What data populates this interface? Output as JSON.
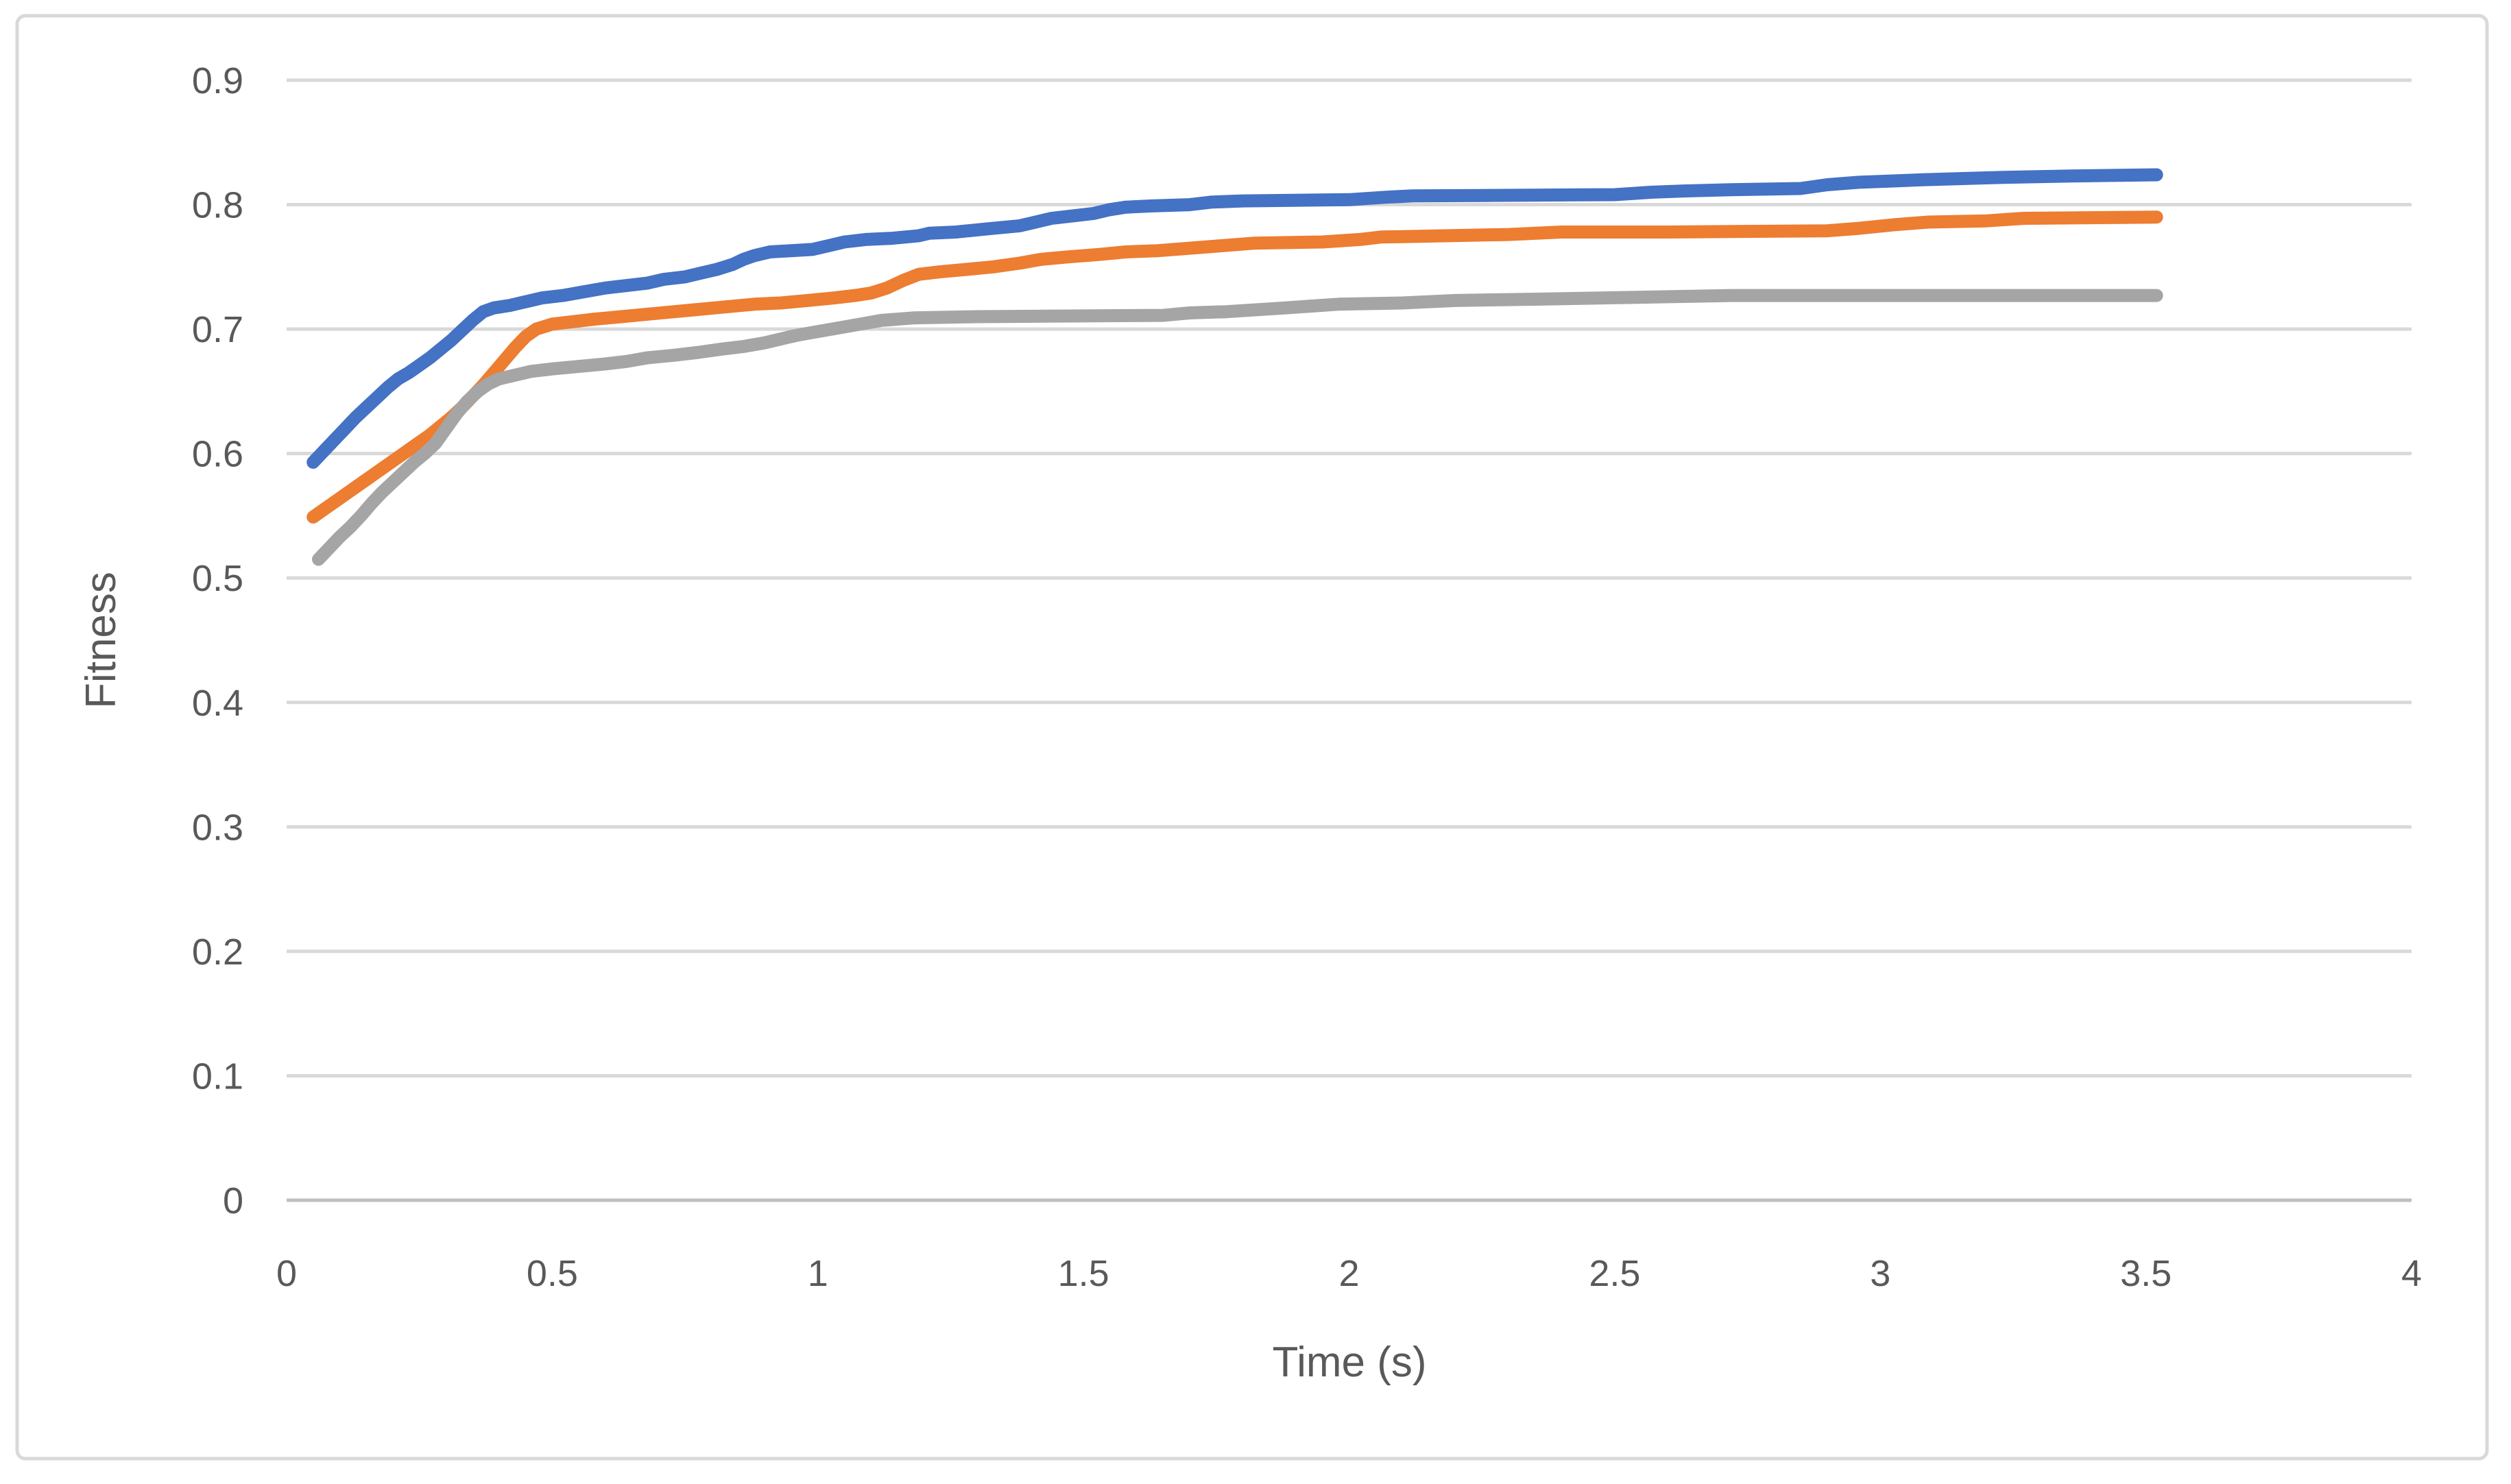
{
  "window": {
    "background": "#ffffff",
    "frame_border_color": "#d9d9d9"
  },
  "chart_data": {
    "type": "line",
    "title": "",
    "xlabel": "Time (s)",
    "ylabel": "Fitness",
    "xlim": [
      0,
      4
    ],
    "ylim": [
      0,
      0.9
    ],
    "x_ticks": [
      0,
      0.5,
      1,
      1.5,
      2,
      2.5,
      3,
      3.5,
      4
    ],
    "x_tick_labels": [
      "0",
      "0.5",
      "1",
      "1.5",
      "2",
      "2.5",
      "3",
      "3.5",
      "4"
    ],
    "y_ticks": [
      0,
      0.1,
      0.2,
      0.3,
      0.4,
      0.5,
      0.6,
      0.7,
      0.8,
      0.9
    ],
    "y_tick_labels": [
      "0",
      "0.1",
      "0.2",
      "0.3",
      "0.4",
      "0.5",
      "0.6",
      "0.7",
      "0.8",
      "0.9"
    ],
    "grid": "horizontal",
    "legend_position": "none",
    "gridline_color": "#d9d9d9",
    "axis_line_color": "#bfbfbf",
    "tick_label_color": "#595959",
    "series": [
      {
        "id": "blue",
        "color": "#4472C4",
        "points": [
          [
            0.05,
            0.593
          ],
          [
            0.07,
            0.602
          ],
          [
            0.09,
            0.611
          ],
          [
            0.11,
            0.62
          ],
          [
            0.13,
            0.629
          ],
          [
            0.15,
            0.637
          ],
          [
            0.17,
            0.645
          ],
          [
            0.19,
            0.653
          ],
          [
            0.21,
            0.66
          ],
          [
            0.23,
            0.665
          ],
          [
            0.25,
            0.671
          ],
          [
            0.27,
            0.677
          ],
          [
            0.29,
            0.684
          ],
          [
            0.31,
            0.691
          ],
          [
            0.33,
            0.699
          ],
          [
            0.35,
            0.707
          ],
          [
            0.37,
            0.714
          ],
          [
            0.39,
            0.717
          ],
          [
            0.42,
            0.719
          ],
          [
            0.45,
            0.722
          ],
          [
            0.48,
            0.725
          ],
          [
            0.52,
            0.727
          ],
          [
            0.56,
            0.73
          ],
          [
            0.6,
            0.733
          ],
          [
            0.64,
            0.735
          ],
          [
            0.68,
            0.737
          ],
          [
            0.71,
            0.74
          ],
          [
            0.75,
            0.742
          ],
          [
            0.78,
            0.745
          ],
          [
            0.81,
            0.748
          ],
          [
            0.84,
            0.752
          ],
          [
            0.86,
            0.756
          ],
          [
            0.88,
            0.759
          ],
          [
            0.91,
            0.762
          ],
          [
            0.99,
            0.764
          ],
          [
            1.02,
            0.767
          ],
          [
            1.05,
            0.77
          ],
          [
            1.09,
            0.772
          ],
          [
            1.14,
            0.773
          ],
          [
            1.19,
            0.775
          ],
          [
            1.21,
            0.777
          ],
          [
            1.26,
            0.778
          ],
          [
            1.33,
            0.781
          ],
          [
            1.38,
            0.783
          ],
          [
            1.41,
            0.786
          ],
          [
            1.44,
            0.789
          ],
          [
            1.48,
            0.791
          ],
          [
            1.52,
            0.793
          ],
          [
            1.55,
            0.796
          ],
          [
            1.58,
            0.798
          ],
          [
            1.63,
            0.799
          ],
          [
            1.7,
            0.8
          ],
          [
            1.74,
            0.802
          ],
          [
            1.8,
            0.803
          ],
          [
            2.0,
            0.804
          ],
          [
            2.07,
            0.806
          ],
          [
            2.12,
            0.807
          ],
          [
            2.5,
            0.808
          ],
          [
            2.57,
            0.81
          ],
          [
            2.63,
            0.811
          ],
          [
            2.72,
            0.812
          ],
          [
            2.85,
            0.813
          ],
          [
            2.9,
            0.816
          ],
          [
            2.96,
            0.818
          ],
          [
            3.02,
            0.819
          ],
          [
            3.08,
            0.82
          ],
          [
            3.16,
            0.821
          ],
          [
            3.24,
            0.822
          ],
          [
            3.36,
            0.823
          ],
          [
            3.52,
            0.824
          ]
        ]
      },
      {
        "id": "orange",
        "color": "#ED7D31",
        "points": [
          [
            0.05,
            0.549
          ],
          [
            0.07,
            0.555
          ],
          [
            0.09,
            0.561
          ],
          [
            0.11,
            0.567
          ],
          [
            0.13,
            0.573
          ],
          [
            0.15,
            0.579
          ],
          [
            0.17,
            0.585
          ],
          [
            0.19,
            0.591
          ],
          [
            0.21,
            0.597
          ],
          [
            0.23,
            0.603
          ],
          [
            0.25,
            0.609
          ],
          [
            0.27,
            0.615
          ],
          [
            0.29,
            0.622
          ],
          [
            0.31,
            0.629
          ],
          [
            0.33,
            0.637
          ],
          [
            0.35,
            0.646
          ],
          [
            0.37,
            0.655
          ],
          [
            0.39,
            0.665
          ],
          [
            0.41,
            0.675
          ],
          [
            0.43,
            0.685
          ],
          [
            0.45,
            0.694
          ],
          [
            0.47,
            0.7
          ],
          [
            0.5,
            0.704
          ],
          [
            0.54,
            0.706
          ],
          [
            0.58,
            0.708
          ],
          [
            0.63,
            0.71
          ],
          [
            0.68,
            0.712
          ],
          [
            0.73,
            0.714
          ],
          [
            0.78,
            0.716
          ],
          [
            0.83,
            0.718
          ],
          [
            0.88,
            0.72
          ],
          [
            0.93,
            0.721
          ],
          [
            0.98,
            0.723
          ],
          [
            1.03,
            0.725
          ],
          [
            1.07,
            0.727
          ],
          [
            1.1,
            0.729
          ],
          [
            1.13,
            0.733
          ],
          [
            1.16,
            0.739
          ],
          [
            1.19,
            0.744
          ],
          [
            1.23,
            0.746
          ],
          [
            1.28,
            0.748
          ],
          [
            1.33,
            0.75
          ],
          [
            1.38,
            0.753
          ],
          [
            1.42,
            0.756
          ],
          [
            1.47,
            0.758
          ],
          [
            1.53,
            0.76
          ],
          [
            1.58,
            0.762
          ],
          [
            1.64,
            0.763
          ],
          [
            1.7,
            0.765
          ],
          [
            1.76,
            0.767
          ],
          [
            1.82,
            0.769
          ],
          [
            1.95,
            0.77
          ],
          [
            2.02,
            0.772
          ],
          [
            2.06,
            0.774
          ],
          [
            2.3,
            0.776
          ],
          [
            2.4,
            0.778
          ],
          [
            2.6,
            0.778
          ],
          [
            2.9,
            0.779
          ],
          [
            2.96,
            0.781
          ],
          [
            3.03,
            0.784
          ],
          [
            3.09,
            0.786
          ],
          [
            3.2,
            0.787
          ],
          [
            3.27,
            0.789
          ],
          [
            3.52,
            0.79
          ]
        ]
      },
      {
        "id": "gray",
        "color": "#A5A5A5",
        "points": [
          [
            0.06,
            0.515
          ],
          [
            0.08,
            0.524
          ],
          [
            0.1,
            0.533
          ],
          [
            0.12,
            0.541
          ],
          [
            0.14,
            0.55
          ],
          [
            0.16,
            0.56
          ],
          [
            0.18,
            0.569
          ],
          [
            0.2,
            0.577
          ],
          [
            0.22,
            0.585
          ],
          [
            0.24,
            0.593
          ],
          [
            0.26,
            0.6
          ],
          [
            0.28,
            0.608
          ],
          [
            0.3,
            0.62
          ],
          [
            0.32,
            0.632
          ],
          [
            0.34,
            0.642
          ],
          [
            0.36,
            0.65
          ],
          [
            0.38,
            0.656
          ],
          [
            0.4,
            0.66
          ],
          [
            0.43,
            0.663
          ],
          [
            0.46,
            0.666
          ],
          [
            0.5,
            0.668
          ],
          [
            0.55,
            0.67
          ],
          [
            0.6,
            0.672
          ],
          [
            0.64,
            0.674
          ],
          [
            0.68,
            0.677
          ],
          [
            0.73,
            0.679
          ],
          [
            0.77,
            0.681
          ],
          [
            0.82,
            0.684
          ],
          [
            0.86,
            0.686
          ],
          [
            0.9,
            0.689
          ],
          [
            0.93,
            0.692
          ],
          [
            0.96,
            0.695
          ],
          [
            1.0,
            0.698
          ],
          [
            1.04,
            0.701
          ],
          [
            1.08,
            0.704
          ],
          [
            1.12,
            0.707
          ],
          [
            1.18,
            0.709
          ],
          [
            1.3,
            0.71
          ],
          [
            1.65,
            0.711
          ],
          [
            1.7,
            0.713
          ],
          [
            1.77,
            0.714
          ],
          [
            1.88,
            0.717
          ],
          [
            1.98,
            0.72
          ],
          [
            2.1,
            0.721
          ],
          [
            2.2,
            0.723
          ],
          [
            2.35,
            0.724
          ],
          [
            2.6,
            0.726
          ],
          [
            2.72,
            0.727
          ],
          [
            3.52,
            0.727
          ]
        ]
      }
    ]
  }
}
